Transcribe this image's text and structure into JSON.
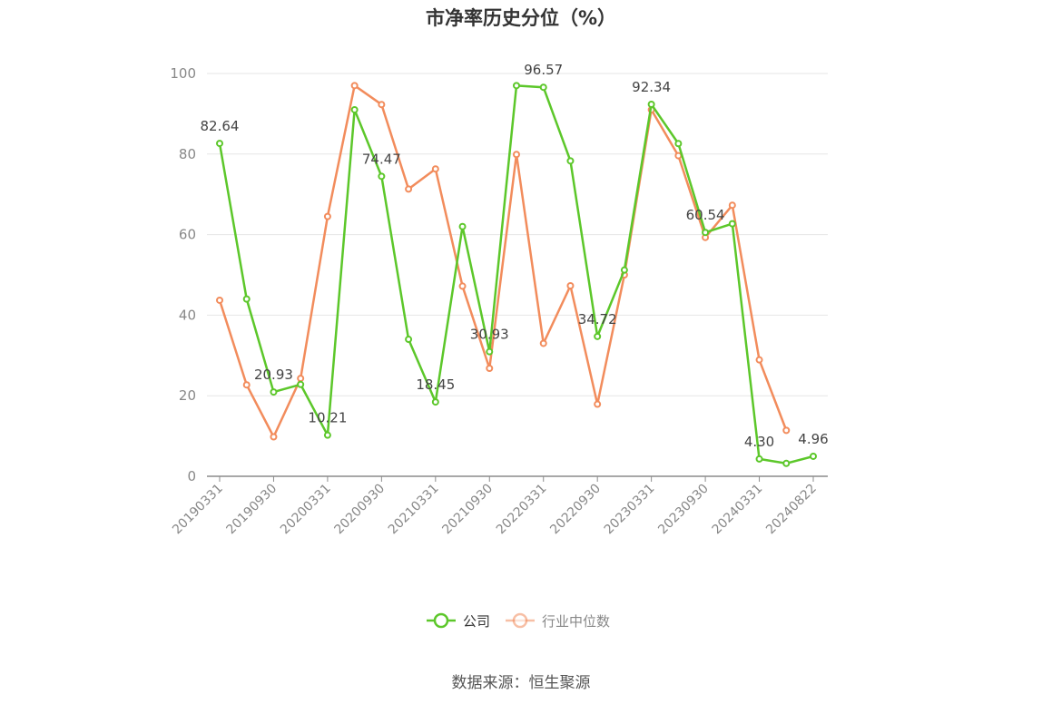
{
  "title": "市净率历史分位（%）",
  "source": "数据来源：恒生聚源",
  "chart_data": {
    "type": "line",
    "title": "市净率历史分位（%）",
    "ylim": [
      0,
      100
    ],
    "yticks": [
      0,
      20,
      40,
      60,
      80,
      100
    ],
    "grid": true,
    "legend_position": "bottom",
    "x": [
      "20190331",
      "20190630",
      "20190930",
      "20191231",
      "20200331",
      "20200630",
      "20200930",
      "20201231",
      "20210331",
      "20210630",
      "20210930",
      "20211231",
      "20220331",
      "20220630",
      "20220930",
      "20221231",
      "20230331",
      "20230630",
      "20230930",
      "20231231",
      "20240331",
      "20240630",
      "20240822"
    ],
    "x_tick_labels": [
      "20190331",
      "20190930",
      "20200331",
      "20200930",
      "20210331",
      "20210930",
      "20220331",
      "20220930",
      "20230331",
      "20230930",
      "20240331",
      "20240822"
    ],
    "series": [
      {
        "name": "公司",
        "color": "#5cc72a",
        "values": [
          82.64,
          44.0,
          20.93,
          22.8,
          10.21,
          91.0,
          74.47,
          34.0,
          18.45,
          62.0,
          30.93,
          97.0,
          96.57,
          78.3,
          34.72,
          51.2,
          92.34,
          82.6,
          60.54,
          62.7,
          4.3,
          3.2,
          4.96
        ]
      },
      {
        "name": "行业中位数",
        "color": "#f28c5c",
        "values": [
          43.7,
          22.7,
          9.8,
          24.3,
          64.5,
          97.0,
          92.3,
          71.3,
          76.3,
          47.2,
          26.8,
          79.9,
          33.0,
          47.3,
          17.9,
          50.0,
          91.0,
          79.6,
          59.3,
          67.3,
          28.9,
          11.4,
          null
        ]
      }
    ],
    "data_labels": [
      {
        "index": 0,
        "text": "82.64"
      },
      {
        "index": 2,
        "text": "20.93"
      },
      {
        "index": 4,
        "text": "10.21"
      },
      {
        "index": 6,
        "text": "74.47"
      },
      {
        "index": 8,
        "text": "18.45"
      },
      {
        "index": 10,
        "text": "30.93"
      },
      {
        "index": 12,
        "text": "96.57"
      },
      {
        "index": 14,
        "text": "34.72"
      },
      {
        "index": 16,
        "text": "92.34"
      },
      {
        "index": 18,
        "text": "60.54"
      },
      {
        "index": 20,
        "text": "4.30"
      },
      {
        "index": 22,
        "text": "4.96"
      }
    ]
  }
}
